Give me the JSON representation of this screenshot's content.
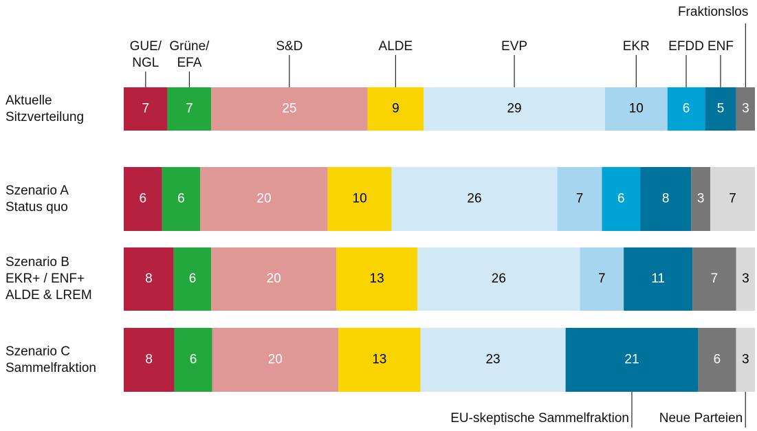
{
  "chart_data": {
    "type": "stacked_bar_horizontal",
    "categories": [
      "Aktuelle\nSitzverteilung",
      "Szenario A\nStatus quo",
      "Szenario B\nEKR+ / ENF+\nALDE & LREM",
      "Szenario C\nSammelfraktion"
    ],
    "series": [
      {
        "name": "GUE/\nNGL",
        "color": "#b5213f",
        "label_color": "#ffffff",
        "values": [
          7,
          6,
          8,
          8
        ]
      },
      {
        "name": "Grüne/\nEFA",
        "color": "#23a83d",
        "label_color": "#ffffff",
        "values": [
          7,
          6,
          6,
          6
        ]
      },
      {
        "name": "S&D",
        "color": "#e09896",
        "label_color": "#ffffff",
        "values": [
          25,
          20,
          20,
          20
        ]
      },
      {
        "name": "ALDE",
        "color": "#fad400",
        "label_color": "#000000",
        "values": [
          9,
          10,
          13,
          13
        ]
      },
      {
        "name": "EVP",
        "color": "#d1e9f6",
        "label_color": "#000000",
        "values": [
          29,
          26,
          26,
          23
        ]
      },
      {
        "name": "EKR",
        "color": "#a6d5ef",
        "label_color": "#000000",
        "values": [
          10,
          7,
          7,
          null
        ]
      },
      {
        "name": "EFDD",
        "color": "#00a3d6",
        "label_color": "#ffffff",
        "values": [
          6,
          6,
          null,
          null
        ]
      },
      {
        "name": "ENF",
        "color": "#00739c",
        "label_color": "#ffffff",
        "values": [
          5,
          8,
          11,
          null
        ]
      },
      {
        "name": "EU-skeptische Sammelfraktion",
        "color": "#00739c",
        "label_color": "#ffffff",
        "values": [
          null,
          null,
          null,
          21
        ]
      },
      {
        "name": "Fraktionslos",
        "color": "#777777",
        "label_color": "#ffffff",
        "values": [
          3,
          3,
          7,
          6
        ]
      },
      {
        "name": "Neue Parteien",
        "color": "#d9d9d9",
        "label_color": "#000000",
        "values": [
          null,
          7,
          3,
          3
        ]
      }
    ]
  }
}
